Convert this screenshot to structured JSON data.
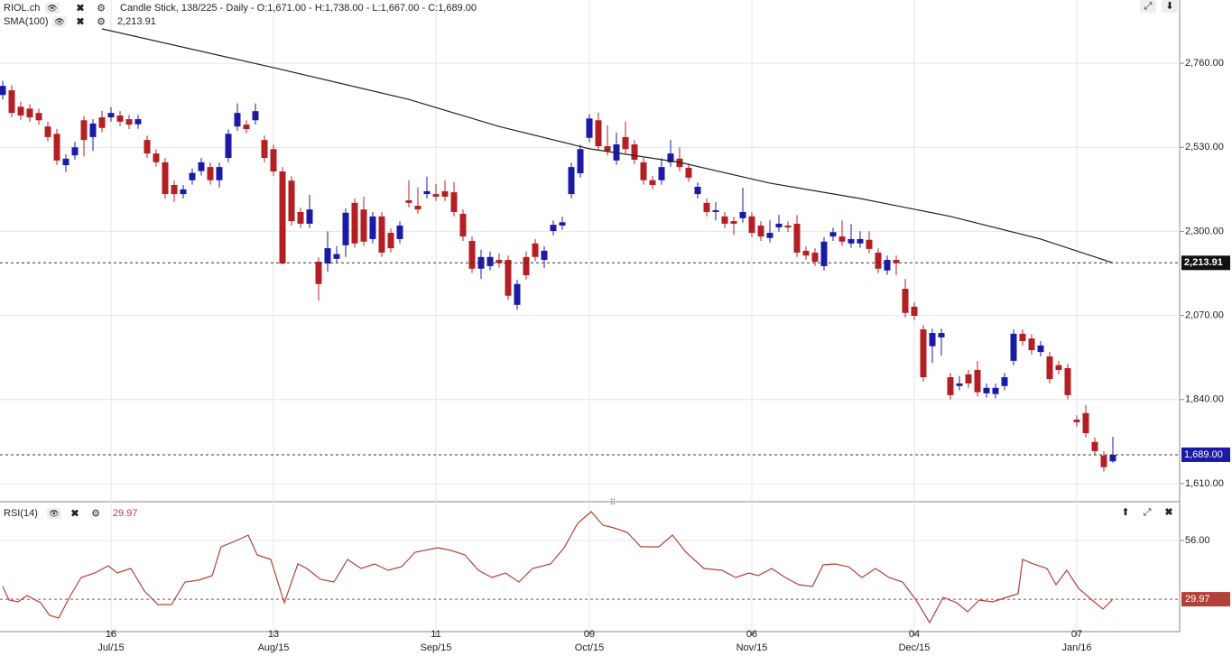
{
  "chart_data": [
    {
      "type": "candlestick",
      "title": "RIOL.ch",
      "subtitle": "Candle Stick, 138/225 - Daily - O:1,671.00 - H:1,738.00 - L:1,667.00 - C:1,689.00",
      "up_color": "#1a1aa6",
      "down_color": "#b41f24",
      "grid": true,
      "xlim": [
        -0.3,
        130.2
      ],
      "ylim": [
        1563,
        2933
      ],
      "yticks": [
        {
          "value": 1610,
          "label": "1,610.00"
        },
        {
          "value": 1840,
          "label": "1,840.00"
        },
        {
          "value": 2070,
          "label": "2,070.00"
        },
        {
          "value": 2300,
          "label": "2,300.00"
        },
        {
          "value": 2530,
          "label": "2,530.00"
        },
        {
          "value": 2760,
          "label": "2,760.00"
        }
      ],
      "xticks": [
        {
          "value": 12,
          "label": "16"
        },
        {
          "value": 30,
          "label": "13"
        },
        {
          "value": 48,
          "label": "11"
        },
        {
          "value": 65,
          "label": "09"
        },
        {
          "value": 83,
          "label": "06"
        },
        {
          "value": 101,
          "label": "04"
        },
        {
          "value": 119,
          "label": "07"
        }
      ],
      "xtick_months": [
        "Jul/15",
        "Aug/15",
        "Sep/15",
        "Oct/15",
        "Nov/15",
        "Dec/15",
        "Jan/16"
      ],
      "ohlc": [
        [
          2673,
          2712,
          2661,
          2698
        ],
        [
          2686,
          2700,
          2612,
          2624
        ],
        [
          2641,
          2655,
          2605,
          2617
        ],
        [
          2636,
          2648,
          2600,
          2612
        ],
        [
          2624,
          2636,
          2592,
          2604
        ],
        [
          2587,
          2600,
          2546,
          2558
        ],
        [
          2567,
          2580,
          2482,
          2494
        ],
        [
          2481,
          2511,
          2462,
          2499
        ],
        [
          2508,
          2545,
          2496,
          2530
        ],
        [
          2604,
          2616,
          2505,
          2550
        ],
        [
          2558,
          2607,
          2520,
          2595
        ],
        [
          2612,
          2630,
          2571,
          2583
        ],
        [
          2612,
          2640,
          2600,
          2624
        ],
        [
          2617,
          2629,
          2588,
          2600
        ],
        [
          2607,
          2619,
          2580,
          2592
        ],
        [
          2593,
          2619,
          2581,
          2607
        ],
        [
          2550,
          2562,
          2501,
          2513
        ],
        [
          2513,
          2525,
          2477,
          2489
        ],
        [
          2489,
          2501,
          2390,
          2402
        ],
        [
          2427,
          2439,
          2380,
          2402
        ],
        [
          2402,
          2427,
          2390,
          2415
        ],
        [
          2440,
          2472,
          2428,
          2460
        ],
        [
          2465,
          2501,
          2453,
          2489
        ],
        [
          2476,
          2488,
          2428,
          2440
        ],
        [
          2440,
          2488,
          2420,
          2476
        ],
        [
          2501,
          2579,
          2489,
          2567
        ],
        [
          2587,
          2650,
          2575,
          2624
        ],
        [
          2592,
          2604,
          2568,
          2580
        ],
        [
          2604,
          2650,
          2592,
          2629
        ],
        [
          2550,
          2562,
          2489,
          2501
        ],
        [
          2525,
          2537,
          2452,
          2464
        ],
        [
          2464,
          2476,
          2210,
          2212
        ],
        [
          2439,
          2451,
          2316,
          2328
        ],
        [
          2353,
          2365,
          2309,
          2321
        ],
        [
          2321,
          2400,
          2309,
          2360
        ],
        [
          2217,
          2229,
          2110,
          2156
        ],
        [
          2212,
          2300,
          2190,
          2254
        ],
        [
          2225,
          2260,
          2213,
          2238
        ],
        [
          2262,
          2363,
          2230,
          2351
        ],
        [
          2378,
          2390,
          2255,
          2267
        ],
        [
          2360,
          2395,
          2260,
          2272
        ],
        [
          2279,
          2353,
          2267,
          2341
        ],
        [
          2341,
          2353,
          2230,
          2242
        ],
        [
          2296,
          2308,
          2242,
          2254
        ],
        [
          2279,
          2328,
          2267,
          2316
        ],
        [
          2385,
          2440,
          2366,
          2378
        ],
        [
          2370,
          2420,
          2348,
          2360
        ],
        [
          2402,
          2450,
          2390,
          2410
        ],
        [
          2402,
          2430,
          2383,
          2395
        ],
        [
          2410,
          2440,
          2383,
          2395
        ],
        [
          2407,
          2435,
          2341,
          2353
        ],
        [
          2348,
          2360,
          2274,
          2286
        ],
        [
          2274,
          2286,
          2186,
          2198
        ],
        [
          2198,
          2250,
          2170,
          2230
        ],
        [
          2205,
          2245,
          2193,
          2230
        ],
        [
          2222,
          2240,
          2201,
          2213
        ],
        [
          2222,
          2234,
          2112,
          2124
        ],
        [
          2099,
          2168,
          2085,
          2156
        ],
        [
          2230,
          2245,
          2168,
          2180
        ],
        [
          2267,
          2279,
          2218,
          2230
        ],
        [
          2222,
          2259,
          2200,
          2247
        ],
        [
          2301,
          2330,
          2289,
          2318
        ],
        [
          2316,
          2340,
          2304,
          2325
        ],
        [
          2402,
          2488,
          2390,
          2476
        ],
        [
          2459,
          2537,
          2447,
          2525
        ],
        [
          2556,
          2621,
          2544,
          2609
        ],
        [
          2604,
          2625,
          2521,
          2533
        ],
        [
          2533,
          2590,
          2508,
          2520
        ],
        [
          2494,
          2570,
          2482,
          2538
        ],
        [
          2558,
          2600,
          2513,
          2525
        ],
        [
          2538,
          2550,
          2484,
          2496
        ],
        [
          2489,
          2501,
          2428,
          2440
        ],
        [
          2440,
          2452,
          2415,
          2427
        ],
        [
          2440,
          2500,
          2428,
          2476
        ],
        [
          2489,
          2550,
          2477,
          2513
        ],
        [
          2499,
          2530,
          2464,
          2476
        ],
        [
          2474,
          2486,
          2435,
          2447
        ],
        [
          2402,
          2434,
          2390,
          2422
        ],
        [
          2378,
          2390,
          2341,
          2353
        ],
        [
          2353,
          2380,
          2330,
          2358
        ],
        [
          2341,
          2353,
          2309,
          2321
        ],
        [
          2328,
          2340,
          2290,
          2321
        ],
        [
          2336,
          2420,
          2324,
          2353
        ],
        [
          2341,
          2353,
          2284,
          2296
        ],
        [
          2316,
          2328,
          2274,
          2286
        ],
        [
          2282,
          2330,
          2270,
          2296
        ],
        [
          2311,
          2345,
          2299,
          2321
        ],
        [
          2316,
          2328,
          2299,
          2311
        ],
        [
          2321,
          2345,
          2230,
          2242
        ],
        [
          2247,
          2259,
          2222,
          2234
        ],
        [
          2242,
          2254,
          2205,
          2217
        ],
        [
          2205,
          2284,
          2193,
          2272
        ],
        [
          2286,
          2310,
          2274,
          2298
        ],
        [
          2286,
          2330,
          2260,
          2272
        ],
        [
          2267,
          2320,
          2255,
          2279
        ],
        [
          2267,
          2300,
          2255,
          2279
        ],
        [
          2277,
          2300,
          2240,
          2252
        ],
        [
          2242,
          2254,
          2186,
          2198
        ],
        [
          2193,
          2234,
          2181,
          2222
        ],
        [
          2222,
          2234,
          2180,
          2213
        ],
        [
          2143,
          2170,
          2065,
          2077
        ],
        [
          2094,
          2106,
          2057,
          2069
        ],
        [
          2032,
          2044,
          1889,
          1901
        ],
        [
          1986,
          2034,
          1940,
          2022
        ],
        [
          2010,
          2034,
          1960,
          2022
        ],
        [
          1901,
          1913,
          1840,
          1852
        ],
        [
          1877,
          1905,
          1865,
          1884
        ],
        [
          1909,
          1921,
          1872,
          1884
        ],
        [
          1921,
          1945,
          1848,
          1860
        ],
        [
          1857,
          1884,
          1845,
          1872
        ],
        [
          1855,
          1884,
          1843,
          1872
        ],
        [
          1877,
          1913,
          1865,
          1901
        ],
        [
          1946,
          2032,
          1934,
          2020
        ],
        [
          2020,
          2032,
          1988,
          2000
        ],
        [
          2007,
          2019,
          1963,
          1975
        ],
        [
          1970,
          2000,
          1958,
          1988
        ],
        [
          1958,
          1970,
          1884,
          1896
        ],
        [
          1934,
          1946,
          1909,
          1921
        ],
        [
          1926,
          1938,
          1840,
          1852
        ],
        [
          1785,
          1797,
          1766,
          1778
        ],
        [
          1803,
          1825,
          1736,
          1748
        ],
        [
          1724,
          1736,
          1687,
          1699
        ],
        [
          1687,
          1699,
          1643,
          1655
        ],
        [
          1671,
          1738,
          1667,
          1689
        ]
      ],
      "overlay": {
        "name": "SMA(100)",
        "color": "#222222",
        "x": [
          11,
          30,
          45,
          55,
          65,
          75,
          85,
          95,
          105,
          115,
          123
        ],
        "values": [
          2854,
          2748,
          2661,
          2587,
          2526,
          2489,
          2432,
          2390,
          2341,
          2279,
          2213.91
        ],
        "last_label": "2,213.91"
      },
      "last_price": {
        "value": 1689,
        "label": "1,689.00"
      }
    },
    {
      "type": "line",
      "title": "RSI(14)",
      "color": "#b5403a",
      "grid": true,
      "xlim": [
        -0.3,
        130.2
      ],
      "ylim": [
        15.6,
        71.6
      ],
      "yticks": [
        {
          "value": 56,
          "label": "56.00"
        }
      ],
      "last_value": 29.97,
      "x": [
        0,
        0.7,
        1.7,
        2.7,
        4.2,
        5.2,
        6.2,
        7.5,
        8.7,
        10.2,
        11.7,
        12.7,
        14.2,
        15.7,
        17.2,
        18.7,
        20.2,
        21.7,
        23.2,
        24.2,
        25.7,
        27.2,
        28.2,
        29.7,
        31.2,
        32.7,
        33.7,
        35.2,
        36.7,
        38.2,
        39.7,
        41.2,
        42.7,
        44.2,
        45.7,
        48.2,
        49.7,
        51.2,
        52.7,
        54.2,
        55.7,
        57.2,
        58.7,
        60.7,
        62.2,
        63.7,
        65.2,
        66.5,
        67.7,
        69.2,
        70.7,
        72.7,
        74.2,
        75.7,
        77.7,
        79.7,
        81.2,
        82.7,
        83.7,
        85.2,
        86.7,
        88.2,
        89.7,
        90.9,
        92.2,
        93.7,
        95.2,
        96.7,
        98.2,
        99.7,
        101.2,
        102.7,
        104.2,
        105.7,
        106.9,
        108.2,
        109.7,
        111.2,
        112.5,
        113,
        114.2,
        115.7,
        116.7,
        117.9,
        119.2,
        120.7,
        121.9,
        123
      ],
      "values": [
        35.6,
        29.6,
        28.8,
        31.6,
        28.4,
        22.8,
        21.6,
        31.6,
        39.6,
        41.6,
        44.8,
        41.6,
        43.6,
        33.6,
        27.6,
        27.6,
        37.6,
        38.4,
        40.4,
        53.2,
        55.6,
        58.4,
        49.6,
        47.6,
        28.4,
        45.6,
        43.6,
        38.8,
        37.6,
        47.6,
        43.6,
        45.6,
        42.8,
        44.4,
        50.8,
        52.8,
        51.6,
        49.6,
        42.8,
        39.6,
        41.6,
        37.6,
        43.6,
        45.6,
        52.8,
        63.6,
        68.8,
        62.8,
        61.6,
        59.6,
        53.2,
        53.2,
        58.4,
        50.8,
        43.6,
        42.8,
        39.6,
        41.6,
        40.4,
        43.6,
        39.6,
        36.4,
        35.6,
        45.2,
        45.6,
        44.4,
        39.6,
        43.6,
        39.6,
        37.6,
        29.6,
        19.6,
        30.8,
        28.4,
        24.4,
        29.6,
        28.8,
        30.8,
        32.4,
        47.6,
        45.6,
        43.6,
        36.4,
        42.8,
        34.8,
        29.6,
        25.6,
        29.97
      ]
    }
  ]
}
